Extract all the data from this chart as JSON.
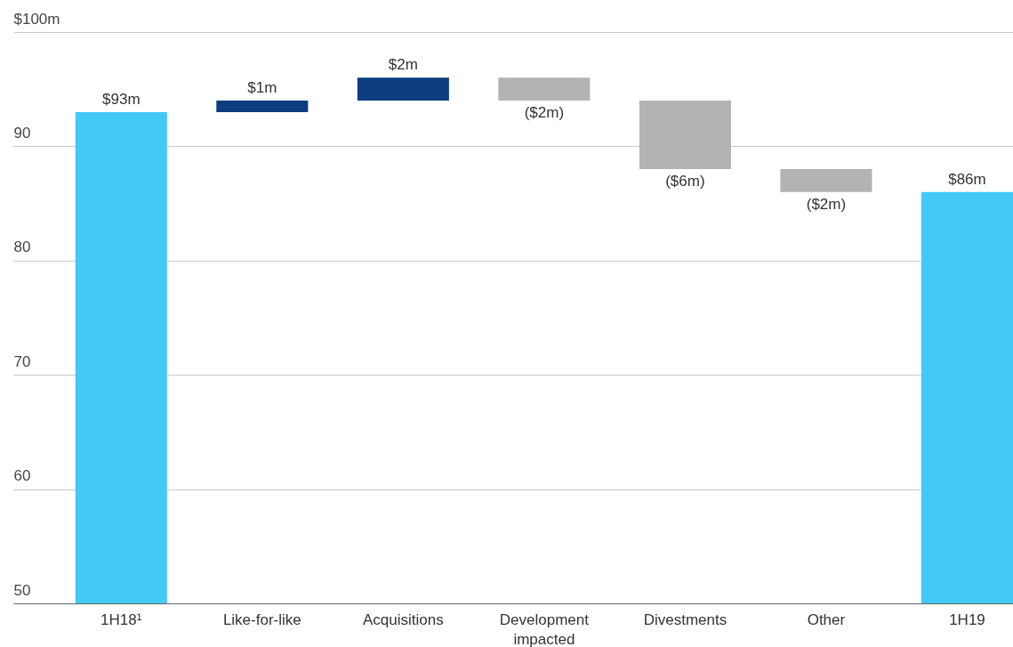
{
  "chart_data": {
    "type": "bar",
    "categories": [
      "1H18¹",
      "Like-for-like",
      "Acquisitions",
      "Development impacted",
      "Divestments",
      "Other",
      "1H19"
    ],
    "values": [
      93,
      1,
      2,
      -2,
      -6,
      -2,
      86
    ],
    "base": [
      null,
      93,
      94,
      96,
      94,
      88,
      null
    ],
    "colors": [
      "#44c8f5",
      "#0c3d7e",
      "#0c3d7e",
      "#b1b3b4",
      "#b1b3b4",
      "#b1b3b4",
      "#44c8f5"
    ],
    "value_labels": [
      "$93m",
      "$1m",
      "$2m",
      "($2m)",
      "($6m)",
      "($2m)",
      "$86m"
    ],
    "ylim": [
      50,
      100
    ],
    "yticks": [
      50,
      60,
      70,
      80,
      90,
      {
        "value": 100,
        "label": "$100m"
      }
    ],
    "grid": "y"
  }
}
